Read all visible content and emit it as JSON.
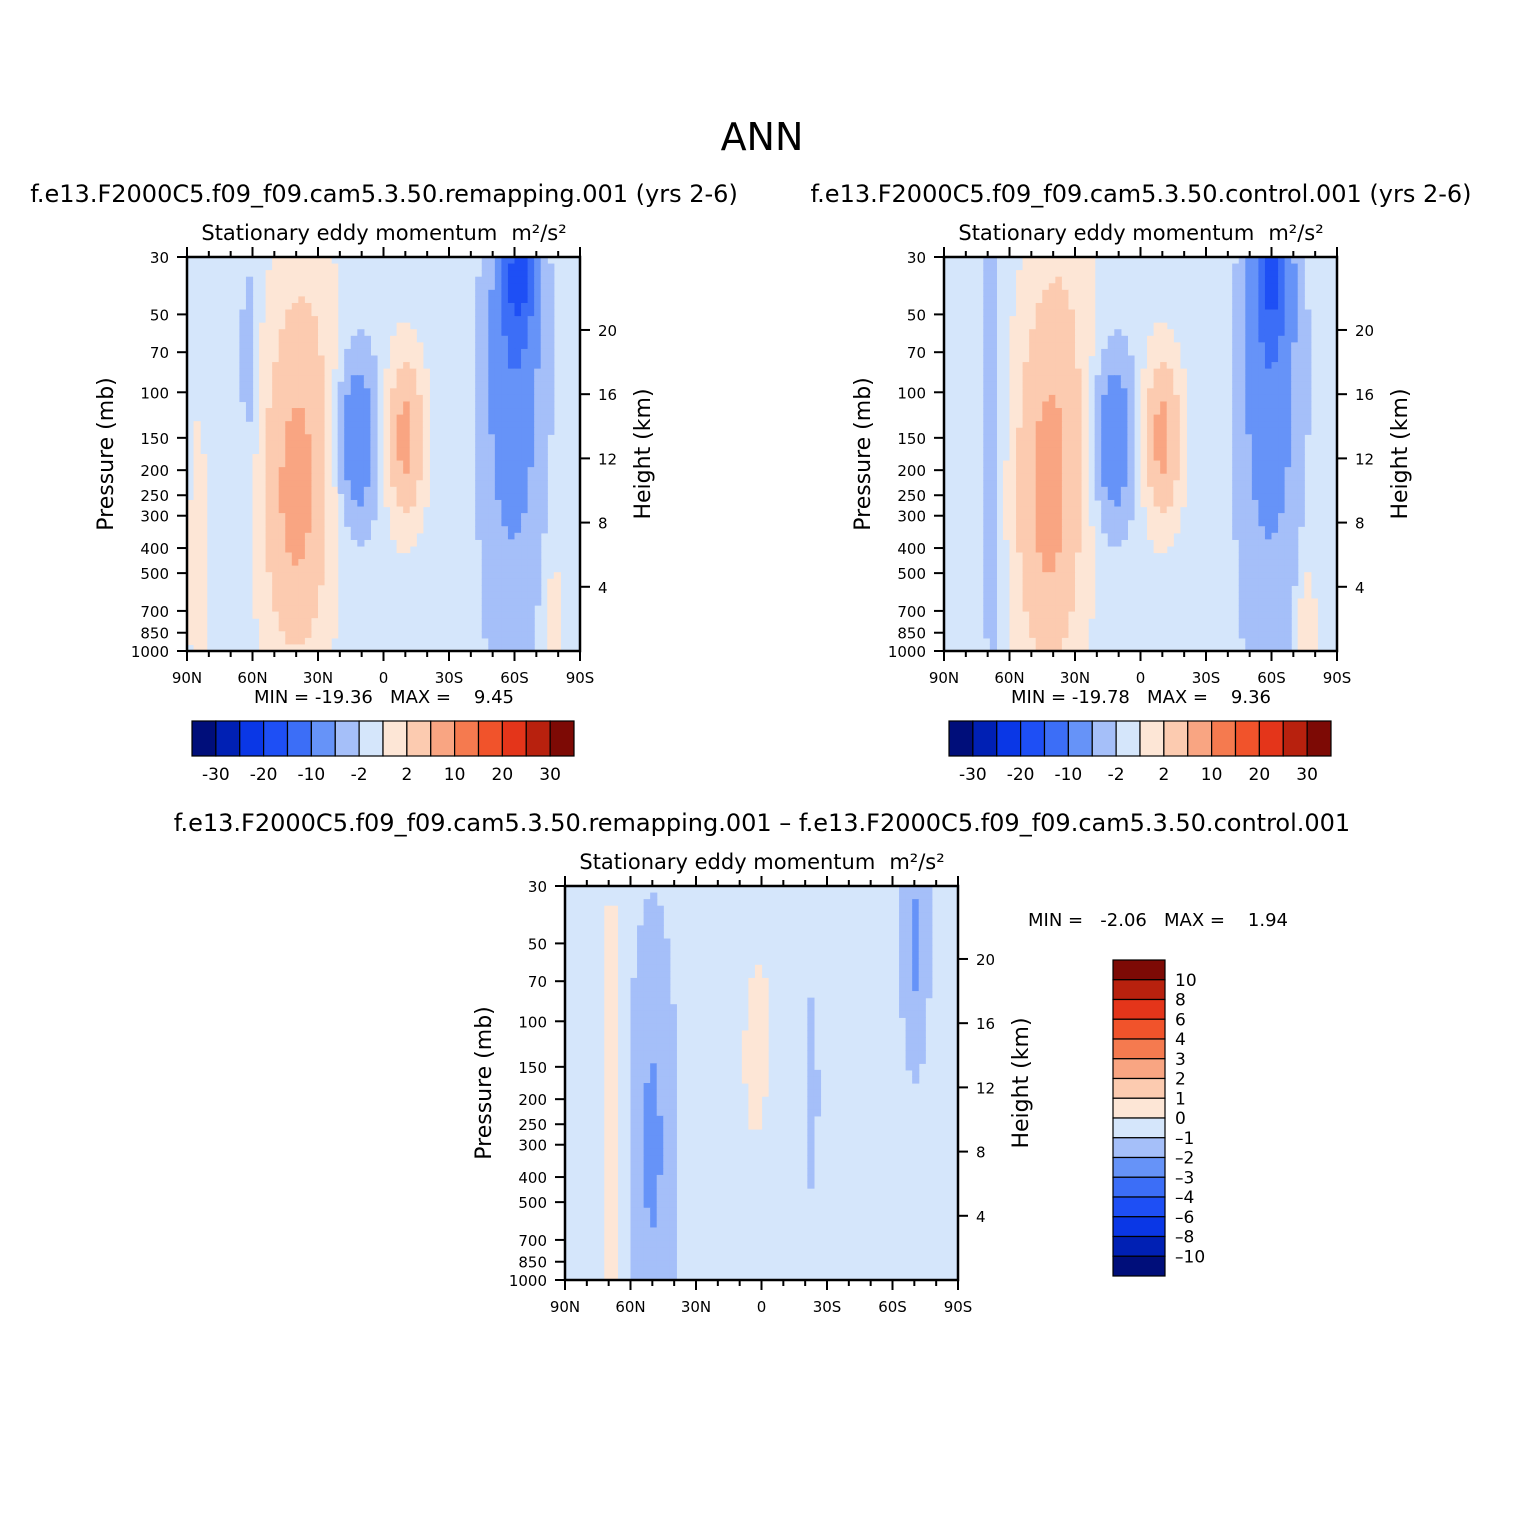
{
  "title": "ANN",
  "colors": {
    "blue": [
      "#000e7a",
      "#0020b4",
      "#0a37e6",
      "#1e4ff5",
      "#3c6ef7",
      "#6693f8",
      "#a5bff9",
      "#d5e6fb"
    ],
    "red": [
      "#fde6d6",
      "#fccbb0",
      "#f9a582",
      "#f57a4f",
      "#f1532b",
      "#e4351a",
      "#b8210e",
      "#7d0a05"
    ],
    "zero": "#ffffff"
  },
  "chart_data": [
    {
      "type": "contour",
      "id": "p1",
      "case_title": "f.e13.F2000C5.f09_f09.cam5.3.50.remapping.001 (yrs 2-6)",
      "subtitle_prefix": "Stationary eddy momentum",
      "units": "m²/s²",
      "ylabel": "Pressure (mb)",
      "ylabel_right": "Height (km)",
      "pressure_ticks": [
        "30",
        "50",
        "70",
        "100",
        "150",
        "200",
        "250",
        "300",
        "400",
        "500",
        "700",
        "850",
        "1000"
      ],
      "pressure_values": [
        30,
        50,
        70,
        100,
        150,
        200,
        250,
        300,
        400,
        500,
        700,
        850,
        1000
      ],
      "height_ticks": [
        "20",
        "16",
        "12",
        "8",
        "4"
      ],
      "height_values": [
        20,
        16,
        12,
        8,
        4
      ],
      "x_ticks": [
        "90N",
        "60N",
        "30N",
        "0",
        "30S",
        "60S",
        "90S"
      ],
      "x_values": [
        90,
        60,
        30,
        0,
        -30,
        -60,
        -90
      ],
      "stats": "MIN = -19.36   MAX =    9.45",
      "colorbar_labels": [
        "-30",
        "-20",
        "-10",
        "-2",
        "2",
        "10",
        "20",
        "30"
      ],
      "levels": [
        -30,
        -25,
        -20,
        -15,
        -10,
        -5,
        -2,
        0,
        2,
        5,
        10,
        15,
        20,
        25,
        30
      ],
      "field": [
        {
          "lat": -62,
          "p": 35,
          "v": -12,
          "w": 8,
          "h": 0.15
        },
        {
          "lat": -60,
          "p": 80,
          "v": -6,
          "w": 12,
          "h": 0.35
        },
        {
          "lat": -58,
          "p": 250,
          "v": -3,
          "w": 14,
          "h": 0.7
        },
        {
          "lat": -10,
          "p": 150,
          "v": 7,
          "w": 8,
          "h": 0.2
        },
        {
          "lat": 12,
          "p": 150,
          "v": -9,
          "w": 8,
          "h": 0.2
        },
        {
          "lat": 40,
          "p": 250,
          "v": 7,
          "w": 15,
          "h": 0.4
        },
        {
          "lat": 62,
          "p": 80,
          "v": -2.5,
          "w": 4,
          "h": 0.3
        },
        {
          "lat": -78,
          "p": 800,
          "v": 3,
          "w": 4,
          "h": 0.15
        },
        {
          "lat": 85,
          "p": 500,
          "v": 1.5,
          "w": 5,
          "h": 0.5
        },
        {
          "lat": 35,
          "p": 50,
          "v": 1.5,
          "w": 15,
          "h": 0.3
        }
      ]
    },
    {
      "type": "contour",
      "id": "p2",
      "case_title": "f.e13.F2000C5.f09_f09.cam5.3.50.control.001 (yrs 2-6)",
      "subtitle_prefix": "Stationary eddy momentum",
      "units": "m²/s²",
      "ylabel": "Pressure (mb)",
      "ylabel_right": "Height (km)",
      "pressure_ticks": [
        "30",
        "50",
        "70",
        "100",
        "150",
        "200",
        "250",
        "300",
        "400",
        "500",
        "700",
        "850",
        "1000"
      ],
      "pressure_values": [
        30,
        50,
        70,
        100,
        150,
        200,
        250,
        300,
        400,
        500,
        700,
        850,
        1000
      ],
      "height_ticks": [
        "20",
        "16",
        "12",
        "8",
        "4"
      ],
      "height_values": [
        20,
        16,
        12,
        8,
        4
      ],
      "x_ticks": [
        "90N",
        "60N",
        "30N",
        "0",
        "30S",
        "60S",
        "90S"
      ],
      "x_values": [
        90,
        60,
        30,
        0,
        -30,
        -60,
        -90
      ],
      "stats": "MIN = -19.78   MAX =    9.36",
      "colorbar_labels": [
        "-30",
        "-20",
        "-10",
        "-2",
        "2",
        "10",
        "20",
        "30"
      ],
      "levels": [
        -30,
        -25,
        -20,
        -15,
        -10,
        -5,
        -2,
        0,
        2,
        5,
        10,
        15,
        20,
        25,
        30
      ],
      "field": [
        {
          "lat": -60,
          "p": 35,
          "v": -11,
          "w": 8,
          "h": 0.15
        },
        {
          "lat": -60,
          "p": 80,
          "v": -6,
          "w": 12,
          "h": 0.35
        },
        {
          "lat": -58,
          "p": 250,
          "v": -3,
          "w": 14,
          "h": 0.7
        },
        {
          "lat": -10,
          "p": 150,
          "v": 7,
          "w": 8,
          "h": 0.2
        },
        {
          "lat": 12,
          "p": 150,
          "v": -9,
          "w": 8,
          "h": 0.2
        },
        {
          "lat": 42,
          "p": 250,
          "v": 7,
          "w": 15,
          "h": 0.45
        },
        {
          "lat": 68,
          "p": 150,
          "v": -2.5,
          "w": 5,
          "h": 0.8
        },
        {
          "lat": -76,
          "p": 800,
          "v": 3,
          "w": 4,
          "h": 0.15
        },
        {
          "lat": 35,
          "p": 50,
          "v": 1.5,
          "w": 15,
          "h": 0.3
        }
      ]
    },
    {
      "type": "contour",
      "id": "p3",
      "case_title": "f.e13.F2000C5.f09_f09.cam5.3.50.remapping.001 – f.e13.F2000C5.f09_f09.cam5.3.50.control.001",
      "subtitle_prefix": "Stationary eddy momentum",
      "units": "m²/s²",
      "ylabel": "Pressure (mb)",
      "ylabel_right": "Height (km)",
      "pressure_ticks": [
        "30",
        "50",
        "70",
        "100",
        "150",
        "200",
        "250",
        "300",
        "400",
        "500",
        "700",
        "850",
        "1000"
      ],
      "pressure_values": [
        30,
        50,
        70,
        100,
        150,
        200,
        250,
        300,
        400,
        500,
        700,
        850,
        1000
      ],
      "height_ticks": [
        "20",
        "16",
        "12",
        "8",
        "4"
      ],
      "height_values": [
        20,
        16,
        12,
        8,
        4
      ],
      "x_ticks": [
        "90N",
        "60N",
        "30N",
        "0",
        "30S",
        "60S",
        "90S"
      ],
      "x_values": [
        90,
        60,
        30,
        0,
        -30,
        -60,
        -90
      ],
      "stats": "MIN =   -2.06   MAX =    1.94",
      "colorbar_labels": [
        "10",
        "8",
        "6",
        "4",
        "3",
        "2",
        "1",
        "0",
        "–1",
        "–2",
        "–3",
        "–4",
        "–6",
        "–8",
        "–10"
      ],
      "levels": [
        -10,
        -8,
        -6,
        -4,
        -3,
        -2,
        -1,
        0,
        1,
        2,
        3,
        4,
        6,
        8,
        10
      ],
      "field": [
        {
          "lat": -70,
          "p": 50,
          "v": -1.5,
          "w": 5,
          "h": 0.25
        },
        {
          "lat": 69,
          "p": 250,
          "v": 1.5,
          "w": 4,
          "h": 0.8
        },
        {
          "lat": 50,
          "p": 300,
          "v": -1.5,
          "w": 8,
          "h": 0.45
        },
        {
          "lat": 3,
          "p": 160,
          "v": 1.2,
          "w": 4,
          "h": 0.15
        },
        {
          "lat": -23,
          "p": 180,
          "v": -1.2,
          "w": 2,
          "h": 0.2
        },
        {
          "lat": -55,
          "p": 400,
          "v": 0.8,
          "w": 6,
          "h": 0.8
        },
        {
          "lat": 0,
          "p": 80,
          "v": 0.8,
          "w": 15,
          "h": 0.4
        },
        {
          "lat": 83,
          "p": 600,
          "v": 0.8,
          "w": 5,
          "h": 0.6
        }
      ]
    }
  ]
}
